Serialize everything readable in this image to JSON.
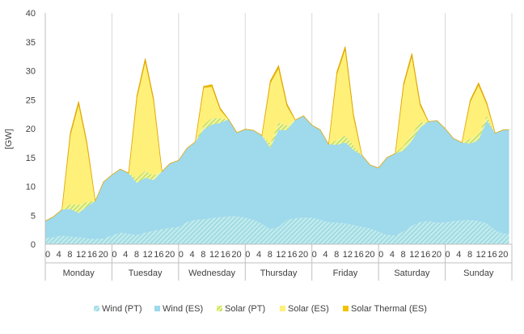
{
  "chart_data": {
    "type": "area",
    "stacked": true,
    "ylabel": "[GW]",
    "ylim": [
      0,
      40
    ],
    "yticks": [
      0,
      5,
      10,
      15,
      20,
      25,
      30,
      35,
      40
    ],
    "hour_ticks": [
      "0",
      "4",
      "8",
      "12",
      "16",
      "20"
    ],
    "days": [
      "Monday",
      "Tuesday",
      "Wednesday",
      "Thursday",
      "Friday",
      "Saturday",
      "Sunday"
    ],
    "grid": "vertical",
    "legend_position": "bottom",
    "series": [
      {
        "name": "Wind (PT)",
        "color": "#9ddcea",
        "pattern": "diagonal-hatch",
        "values": [
          [
            1.0,
            1.2,
            1.5,
            1.3,
            1.2,
            1.0,
            0.9,
            1.0
          ],
          [
            1.5,
            2.0,
            1.8,
            1.6,
            2.0,
            2.3,
            2.6,
            2.8
          ],
          [
            3.0,
            3.8,
            4.2,
            4.3,
            4.5,
            4.7,
            4.8,
            4.8
          ],
          [
            4.6,
            4.2,
            3.5,
            2.6,
            3.0,
            4.2,
            4.5,
            4.6
          ],
          [
            4.6,
            4.2,
            3.8,
            3.7,
            3.6,
            3.3,
            3.0,
            2.7
          ],
          [
            2.2,
            1.6,
            1.5,
            2.2,
            3.2,
            3.8,
            4.0,
            3.7
          ],
          [
            3.8,
            4.0,
            4.1,
            4.2,
            4.0,
            3.6,
            2.4,
            1.8
          ]
        ]
      },
      {
        "name": "Wind (ES)",
        "color": "#9ed9ec",
        "values": [
          [
            3.0,
            3.6,
            4.5,
            4.8,
            4.2,
            5.5,
            6.6,
            9.8
          ],
          [
            10.5,
            11.0,
            10.5,
            9.0,
            9.5,
            8.8,
            10.0,
            11.2
          ],
          [
            11.5,
            12.8,
            13.5,
            15.5,
            16.2,
            16.3,
            16.8,
            14.5
          ],
          [
            15.3,
            15.5,
            15.3,
            14.0,
            16.8,
            15.5,
            17.0,
            17.6
          ],
          [
            16.0,
            15.6,
            13.5,
            13.5,
            14.0,
            13.0,
            12.4,
            11.0
          ],
          [
            11.0,
            13.4,
            14.2,
            14.0,
            14.7,
            16.4,
            17.2,
            17.7
          ],
          [
            16.2,
            14.3,
            13.5,
            13.2,
            14.0,
            17.8,
            16.8,
            18.0
          ]
        ]
      },
      {
        "name": "Solar (PT)",
        "color": "#c8e07a",
        "pattern": "diagonal-hatch",
        "values": [
          [
            0,
            0,
            0,
            0.8,
            1.4,
            0.8,
            0,
            0
          ],
          [
            0,
            0,
            0,
            0.8,
            1.2,
            0.8,
            0,
            0
          ],
          [
            0,
            0,
            0,
            0.8,
            1.1,
            0.8,
            0,
            0
          ],
          [
            0,
            0,
            0,
            0.8,
            1.2,
            0.8,
            0,
            0
          ],
          [
            0,
            0,
            0,
            0.8,
            1.2,
            0.8,
            0,
            0
          ],
          [
            0,
            0,
            0,
            0.8,
            1.2,
            0.8,
            0,
            0
          ],
          [
            0,
            0,
            0,
            0.8,
            1.1,
            0.8,
            0,
            0
          ]
        ]
      },
      {
        "name": "Solar (ES)",
        "color": "#fff07a",
        "values": [
          [
            0,
            0,
            0,
            12.0,
            17.5,
            10.0,
            0,
            0
          ],
          [
            0,
            0,
            0,
            14.0,
            19.0,
            13.0,
            0,
            0
          ],
          [
            0,
            0,
            0,
            6.5,
            5.5,
            1.5,
            0,
            0
          ],
          [
            0,
            0,
            0,
            10.5,
            9.5,
            3.5,
            0,
            0
          ],
          [
            0,
            0,
            0,
            11.5,
            15.0,
            5.0,
            0,
            0
          ],
          [
            0,
            0,
            0,
            10.5,
            13.5,
            3.0,
            0,
            0
          ],
          [
            0,
            0,
            0,
            6.5,
            8.5,
            2.0,
            0,
            0
          ]
        ]
      },
      {
        "name": "Solar Thermal (ES)",
        "color": "#f2c200",
        "values": [
          [
            0,
            0,
            0,
            0.3,
            0.4,
            0.3,
            0,
            0
          ],
          [
            0,
            0,
            0,
            0.3,
            0.4,
            0.3,
            0,
            0
          ],
          [
            0,
            0,
            0,
            0.2,
            0.3,
            0.2,
            0,
            0
          ],
          [
            0,
            0,
            0,
            0.3,
            0.4,
            0.3,
            0,
            0
          ],
          [
            0,
            0,
            0,
            0.3,
            0.4,
            0.3,
            0,
            0
          ],
          [
            0,
            0,
            0,
            0.3,
            0.4,
            0.3,
            0,
            0
          ],
          [
            0,
            0,
            0,
            0.2,
            0.3,
            0.2,
            0,
            0
          ]
        ]
      }
    ],
    "sample_hours": [
      0,
      3,
      6,
      9,
      12,
      15,
      18,
      21
    ]
  }
}
